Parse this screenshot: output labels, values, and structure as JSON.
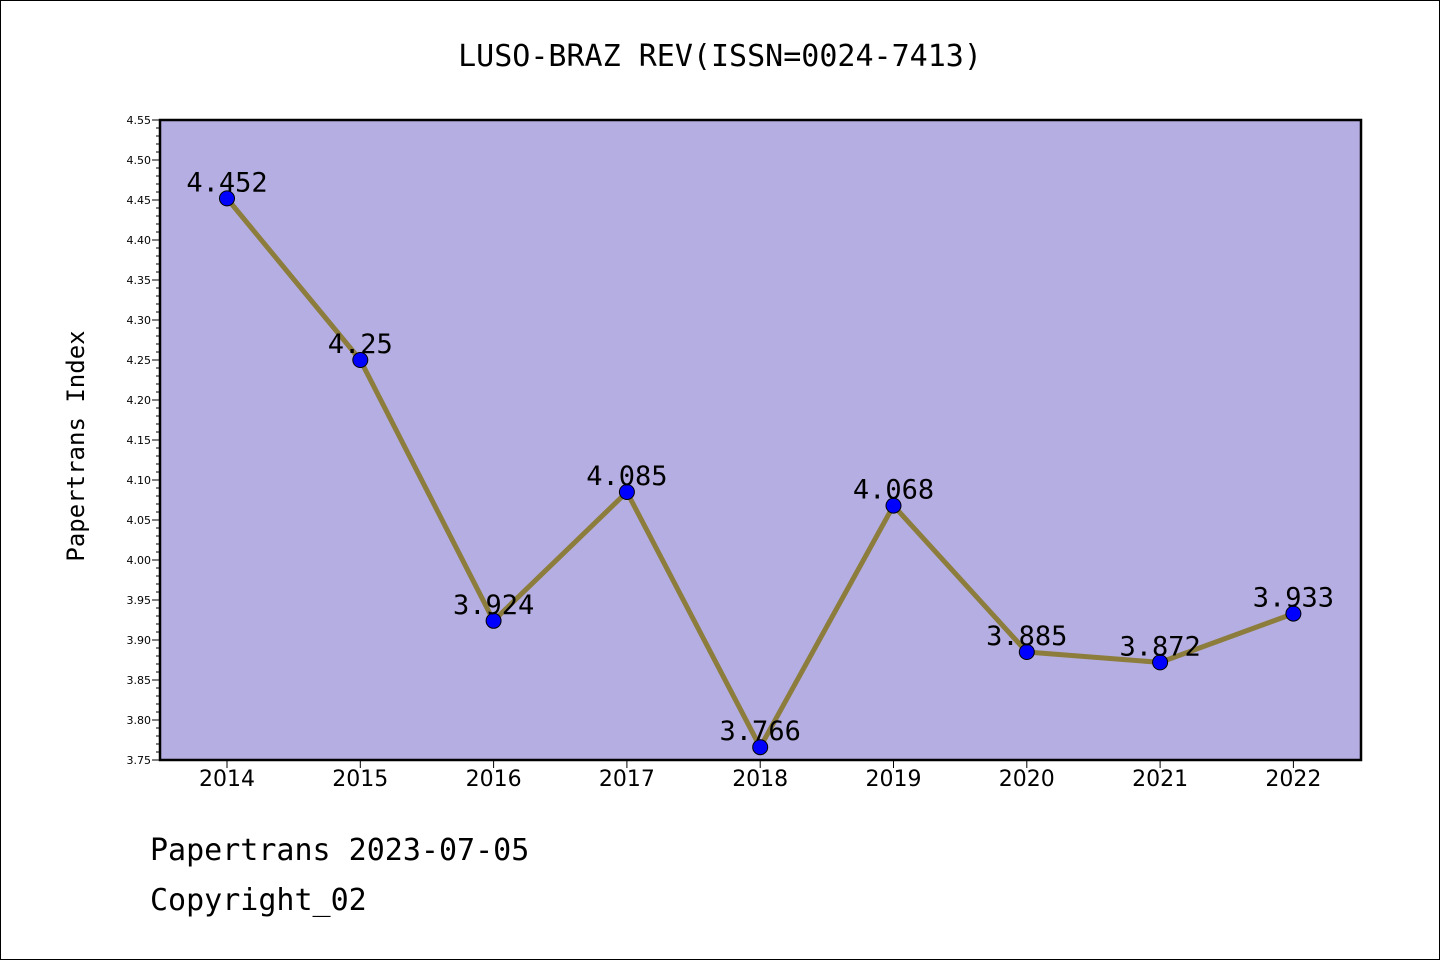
{
  "chart_data": {
    "type": "line",
    "title": "LUSO-BRAZ REV(ISSN=0024-7413)",
    "xlabel": "",
    "ylabel": "Papertrans Index",
    "categories": [
      "2014",
      "2015",
      "2016",
      "2017",
      "2018",
      "2019",
      "2020",
      "2021",
      "2022"
    ],
    "values": [
      4.452,
      4.25,
      3.924,
      4.085,
      3.766,
      4.068,
      3.885,
      3.872,
      3.933
    ],
    "data_labels": [
      "4.452",
      "4.25",
      "3.924",
      "4.085",
      "3.766",
      "4.068",
      "3.885",
      "3.872",
      "3.933"
    ],
    "ylim": [
      3.75,
      4.55
    ],
    "yticks": [
      "3.75",
      "3.80",
      "3.85",
      "3.90",
      "3.95",
      "4.00",
      "4.05",
      "4.10",
      "4.15",
      "4.20",
      "4.25",
      "4.30",
      "4.35",
      "4.40",
      "4.45",
      "4.50",
      "4.55"
    ],
    "grid": false,
    "colors": {
      "plot_background": "#b5aee2",
      "line": "#8c7d3c",
      "marker": "#0000ff"
    }
  },
  "footer": {
    "source": "Papertrans 2023-07-05",
    "copyright": "Copyright_02"
  }
}
